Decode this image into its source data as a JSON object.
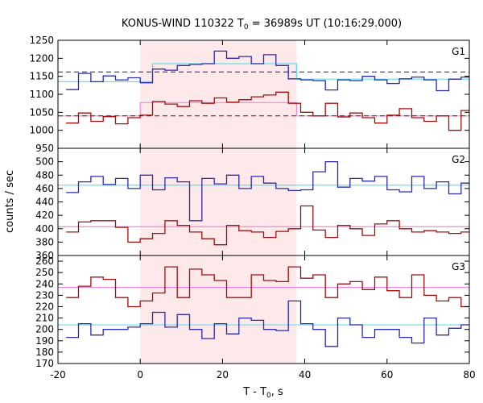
{
  "chart_data": {
    "type": "line",
    "title": "KONUS-WIND 110322 T",
    "title_sub": "0",
    "title_rest": " = 36989s UT (10:16:29.000)",
    "xlabel": "T - T",
    "xlabel_sub": "0",
    "xlabel_rest": ", s",
    "ylabel": "counts / sec",
    "xlim": [
      -20,
      80
    ],
    "x_ticks": [
      "-20",
      "0",
      "20",
      "40",
      "60",
      "80"
    ],
    "x_tick_values": [
      -20,
      0,
      20,
      40,
      60,
      80
    ],
    "shaded_interval": [
      0,
      38
    ],
    "shade_color": "#fde8ea",
    "grid": false,
    "colors": {
      "blue": "#2b2bb0",
      "red": "#a01010",
      "cyan": "#66ddee",
      "pink": "#ee88dd",
      "blue_dash": "#1a1a80",
      "red_dash": "#8b0000"
    },
    "panels": [
      {
        "name": "G1",
        "ylim": [
          950,
          1250
        ],
        "y_ticks": [
          "950",
          "1000",
          "1050",
          "1100",
          "1150",
          "1200",
          "1250"
        ],
        "y_tick_values": [
          950,
          1000,
          1050,
          1100,
          1150,
          1200,
          1250
        ],
        "blue_bg_level": 1162,
        "red_bg_level": 1040,
        "blue_fit": [
          [
            -20,
            1135
          ],
          [
            3,
            1135
          ],
          [
            3,
            1185
          ],
          [
            38,
            1185
          ],
          [
            38,
            1142
          ],
          [
            80,
            1142
          ]
        ],
        "red_fit": [
          [
            -20,
            1040
          ],
          [
            0,
            1040
          ],
          [
            0,
            1077
          ],
          [
            38,
            1077
          ],
          [
            38,
            1040
          ],
          [
            80,
            1040
          ]
        ],
        "blue_edges": [
          -18,
          -15,
          -12,
          -9,
          -6,
          -3,
          0,
          3,
          6,
          9,
          12,
          15,
          18,
          21,
          24,
          27,
          30,
          33,
          36,
          39,
          42,
          45,
          48,
          51,
          54,
          57,
          60,
          63,
          66,
          69,
          72,
          75,
          78,
          81
        ],
        "blue_values": [
          1113,
          1158,
          1135,
          1151,
          1140,
          1146,
          1132,
          1170,
          1167,
          1180,
          1183,
          1185,
          1220,
          1200,
          1205,
          1185,
          1210,
          1180,
          1143,
          1140,
          1138,
          1112,
          1140,
          1138,
          1150,
          1140,
          1130,
          1143,
          1148,
          1140,
          1110,
          1142,
          1148
        ],
        "red_edges": [
          -18,
          -15,
          -12,
          -9,
          -6,
          -3,
          0,
          3,
          6,
          9,
          12,
          15,
          18,
          21,
          24,
          27,
          30,
          33,
          36,
          39,
          42,
          45,
          48,
          51,
          54,
          57,
          60,
          63,
          66,
          69,
          72,
          75,
          78,
          81
        ],
        "red_values": [
          1020,
          1048,
          1025,
          1038,
          1018,
          1035,
          1042,
          1080,
          1073,
          1066,
          1082,
          1075,
          1090,
          1078,
          1085,
          1093,
          1098,
          1106,
          1075,
          1050,
          1040,
          1075,
          1037,
          1048,
          1035,
          1020,
          1042,
          1060,
          1035,
          1025,
          1040,
          1000,
          1055
        ]
      },
      {
        "name": "G2",
        "ylim": [
          360,
          520
        ],
        "y_ticks": [
          "360",
          "380",
          "400",
          "420",
          "440",
          "460",
          "480",
          "500"
        ],
        "y_tick_values": [
          360,
          380,
          400,
          420,
          440,
          460,
          480,
          500
        ],
        "blue_bg_level": 465,
        "red_bg_level": 403,
        "blue_edges": [
          -18,
          -15,
          -12,
          -9,
          -6,
          -3,
          0,
          3,
          6,
          9,
          12,
          15,
          18,
          21,
          24,
          27,
          30,
          33,
          36,
          39,
          42,
          45,
          48,
          51,
          54,
          57,
          60,
          63,
          66,
          69,
          72,
          75,
          78,
          81
        ],
        "blue_values": [
          454,
          470,
          478,
          466,
          475,
          460,
          480,
          458,
          476,
          470,
          412,
          475,
          467,
          480,
          460,
          478,
          468,
          460,
          457,
          458,
          485,
          500,
          462,
          475,
          471,
          478,
          458,
          455,
          478,
          460,
          470,
          452,
          468
        ],
        "red_edges": [
          -18,
          -15,
          -12,
          -9,
          -6,
          -3,
          0,
          3,
          6,
          9,
          12,
          15,
          18,
          21,
          24,
          27,
          30,
          33,
          36,
          39,
          42,
          45,
          48,
          51,
          54,
          57,
          60,
          63,
          66,
          69,
          72,
          75,
          78,
          81
        ],
        "red_values": [
          395,
          410,
          412,
          412,
          402,
          380,
          385,
          393,
          412,
          405,
          395,
          385,
          376,
          405,
          397,
          395,
          387,
          396,
          400,
          434,
          398,
          387,
          405,
          400,
          390,
          407,
          412,
          400,
          395,
          397,
          395,
          393,
          395
        ]
      },
      {
        "name": "G3",
        "ylim": [
          170,
          265
        ],
        "y_ticks": [
          "170",
          "180",
          "190",
          "200",
          "210",
          "220",
          "230",
          "240",
          "250",
          "260"
        ],
        "y_tick_values": [
          170,
          180,
          190,
          200,
          210,
          220,
          230,
          240,
          250,
          260
        ],
        "blue_bg_level": 204,
        "red_bg_level": 237,
        "blue_edges": [
          -18,
          -15,
          -12,
          -9,
          -6,
          -3,
          0,
          3,
          6,
          9,
          12,
          15,
          18,
          21,
          24,
          27,
          30,
          33,
          36,
          39,
          42,
          45,
          48,
          51,
          54,
          57,
          60,
          63,
          66,
          69,
          72,
          75,
          78,
          81
        ],
        "blue_values": [
          193,
          205,
          195,
          200,
          200,
          202,
          205,
          215,
          202,
          213,
          200,
          192,
          205,
          196,
          210,
          208,
          200,
          199,
          225,
          205,
          200,
          185,
          210,
          204,
          193,
          200,
          200,
          193,
          188,
          210,
          195,
          201,
          204
        ],
        "red_edges": [
          -18,
          -15,
          -12,
          -9,
          -6,
          -3,
          0,
          3,
          6,
          9,
          12,
          15,
          18,
          21,
          24,
          27,
          30,
          33,
          36,
          39,
          42,
          45,
          48,
          51,
          54,
          57,
          60,
          63,
          66,
          69,
          72,
          75,
          78,
          81
        ],
        "red_values": [
          228,
          238,
          246,
          244,
          228,
          220,
          225,
          232,
          255,
          228,
          253,
          248,
          243,
          228,
          228,
          248,
          243,
          242,
          255,
          245,
          248,
          228,
          240,
          242,
          235,
          246,
          234,
          228,
          248,
          230,
          225,
          228,
          220
        ]
      }
    ]
  }
}
